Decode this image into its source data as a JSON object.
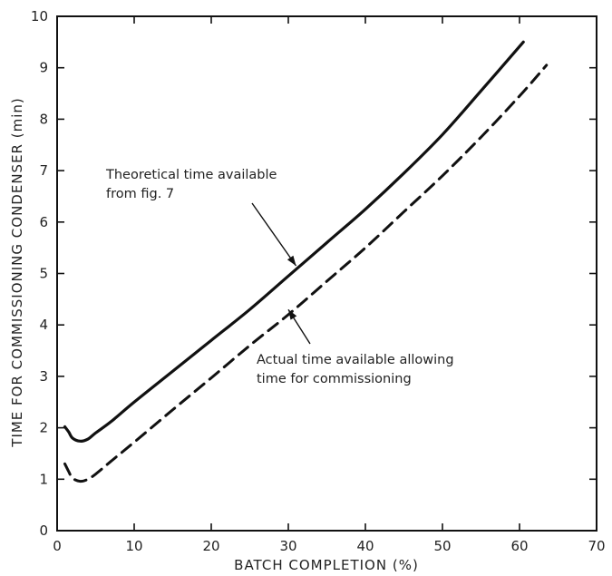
{
  "chart_data": {
    "type": "line",
    "xlabel": "BATCH COMPLETION (%)",
    "ylabel": "TIME FOR COMMISSIONING CONDENSER (min)",
    "xlim": [
      0,
      70
    ],
    "ylim": [
      0,
      10
    ],
    "x_ticks": [
      0,
      10,
      20,
      30,
      40,
      50,
      60,
      70
    ],
    "y_ticks": [
      0,
      1,
      2,
      3,
      4,
      5,
      6,
      7,
      8,
      9,
      10
    ],
    "grid": false,
    "series": [
      {
        "style": "solid",
        "x": [
          1,
          1.5,
          2,
          3,
          4,
          5,
          7,
          10,
          15,
          20,
          25,
          30,
          35,
          40,
          45,
          50,
          55,
          60.5
        ],
        "y": [
          2.02,
          1.92,
          1.8,
          1.74,
          1.78,
          1.9,
          2.12,
          2.5,
          3.1,
          3.7,
          4.3,
          4.95,
          5.6,
          6.25,
          6.95,
          7.7,
          8.55,
          9.5
        ]
      },
      {
        "style": "dashed",
        "x": [
          1,
          1.5,
          2,
          3,
          4,
          5,
          7,
          10,
          15,
          20,
          25,
          30,
          35,
          40,
          45,
          50,
          55,
          60,
          63.5
        ],
        "y": [
          1.3,
          1.15,
          1.02,
          0.96,
          1.0,
          1.1,
          1.35,
          1.72,
          2.35,
          2.97,
          3.6,
          4.2,
          4.85,
          5.5,
          6.2,
          6.9,
          7.65,
          8.45,
          9.05
        ]
      }
    ],
    "annotations": [
      {
        "lines": [
          "Theoretical time available",
          "from fig. 7"
        ],
        "target_series": 0,
        "arrow_to": [
          31,
          5.15
        ]
      },
      {
        "lines": [
          "Actual time available allowing",
          "time for commissioning"
        ],
        "target_series": 1,
        "arrow_to": [
          30,
          4.3
        ]
      }
    ]
  }
}
